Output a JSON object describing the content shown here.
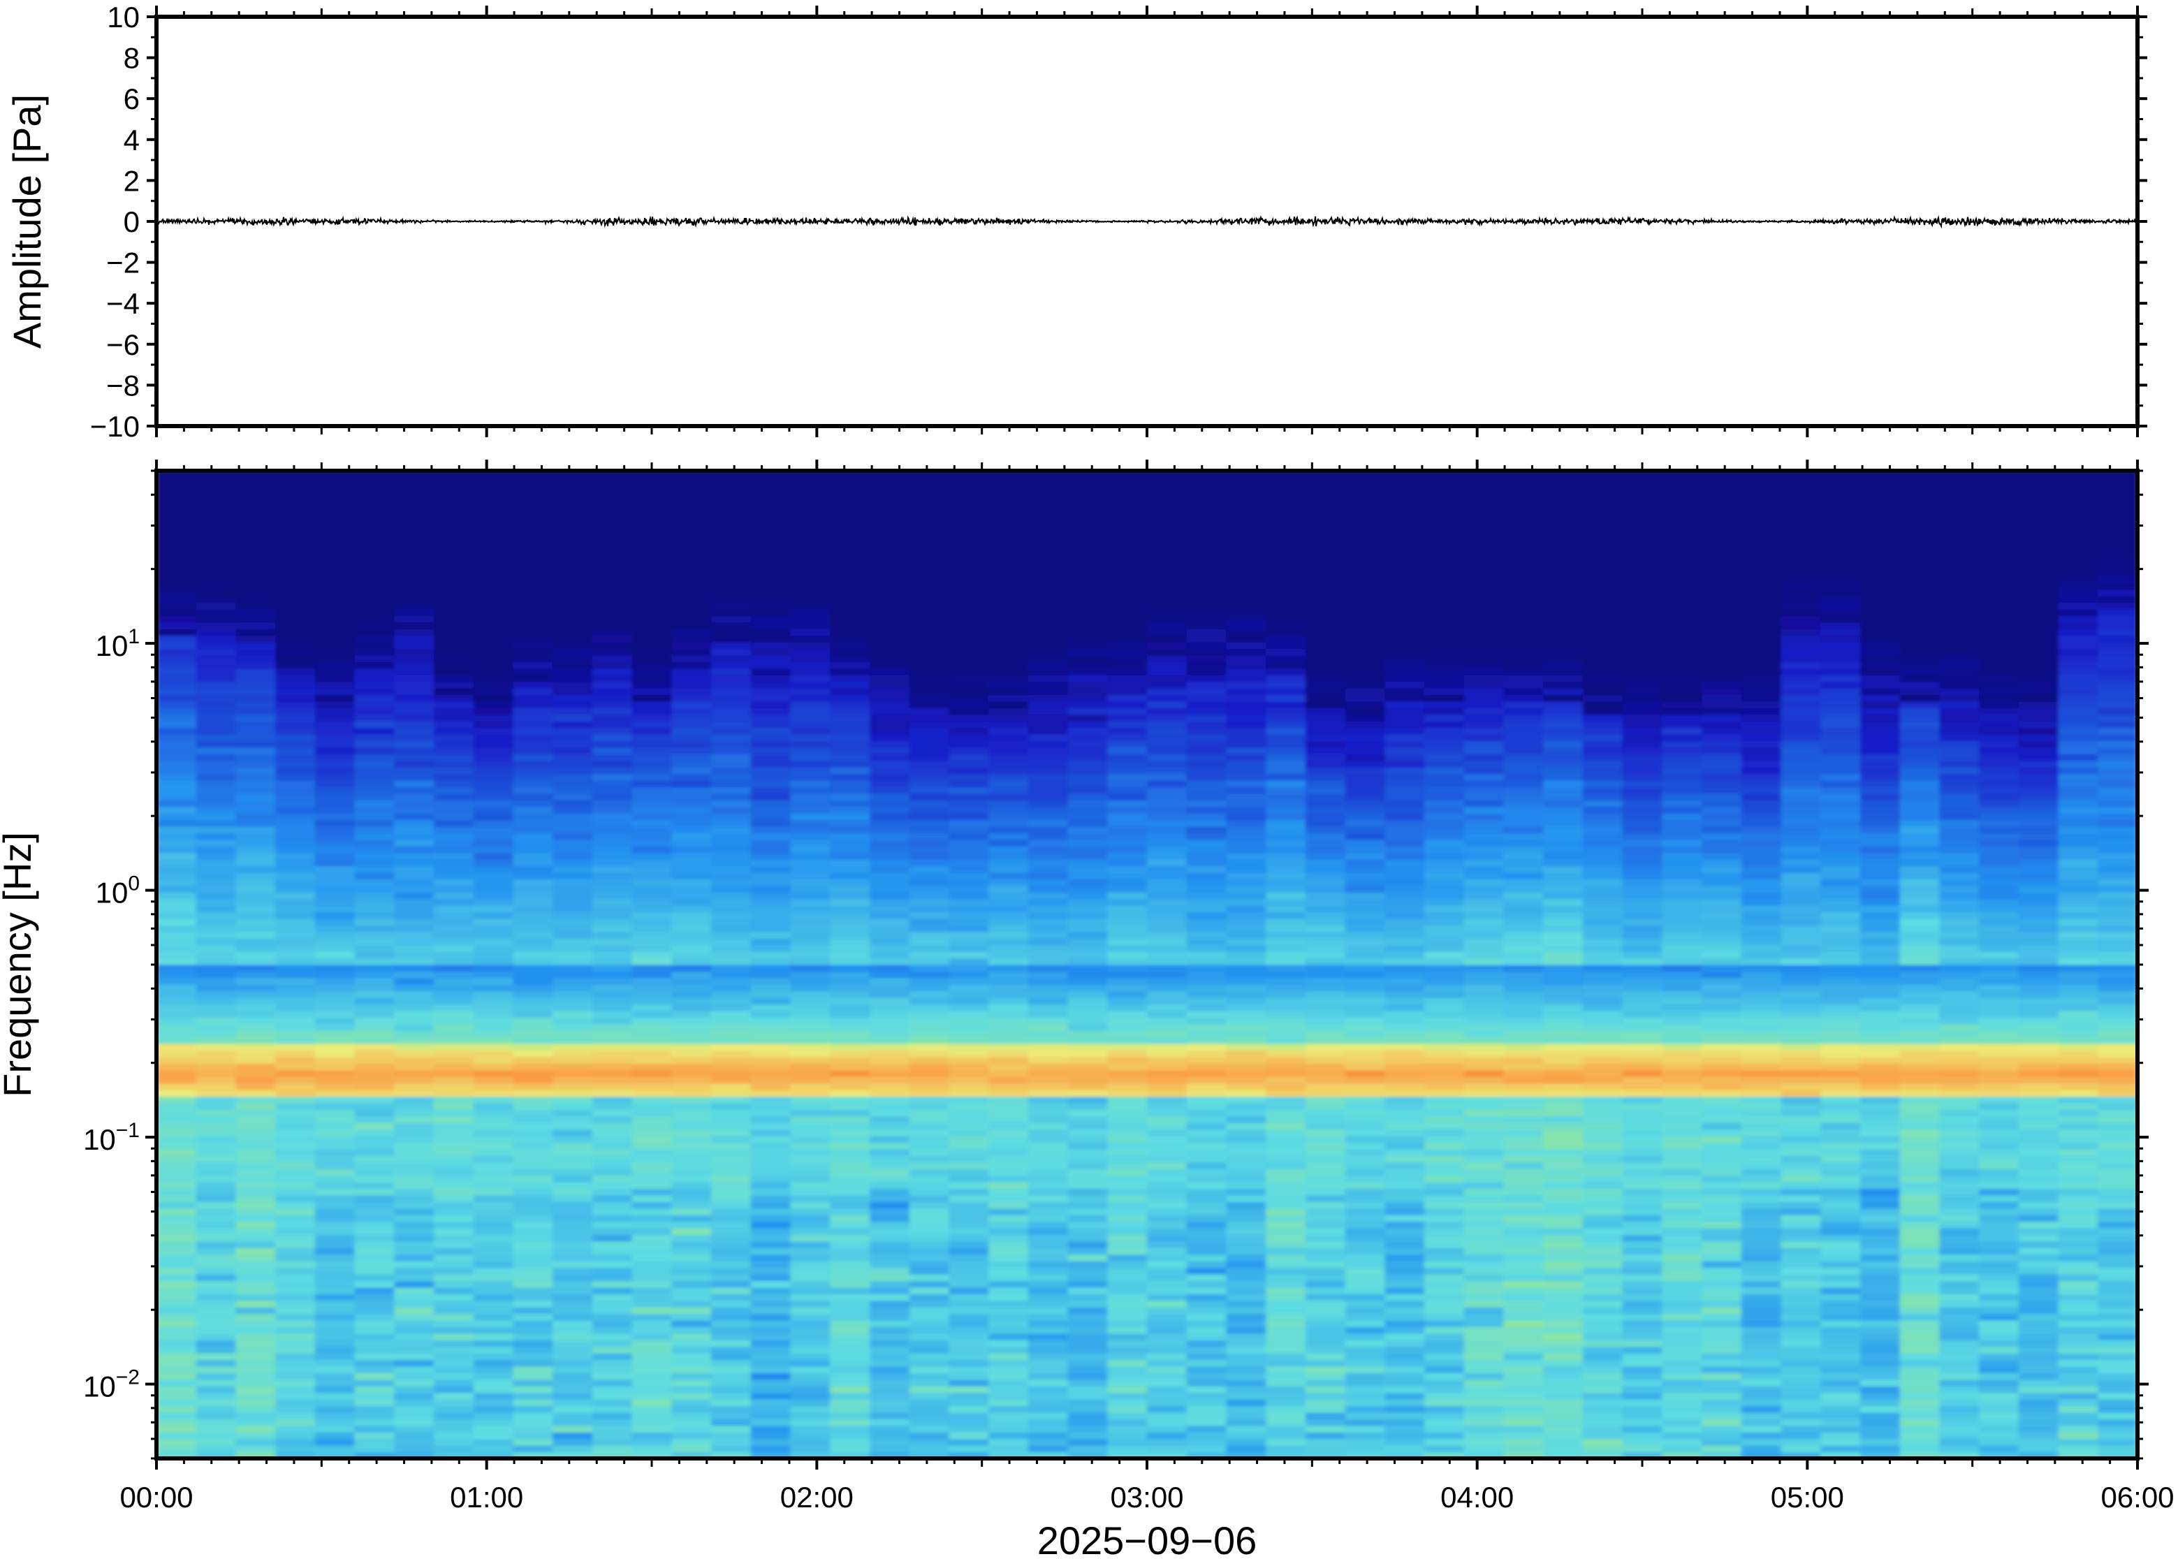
{
  "chart_data": [
    {
      "type": "line",
      "ylabel": "Amplitude [Pa]",
      "ylim": [
        -10,
        10
      ],
      "yticks": [
        10,
        8,
        6,
        4,
        2,
        0,
        -2,
        -4,
        -6,
        -8,
        -10
      ],
      "ytick_labels": [
        "10",
        "8",
        "6",
        "4",
        "2",
        "0",
        "−2",
        "−4",
        "−6",
        "−8",
        "−10"
      ],
      "xlim": [
        "00:00",
        "06:00"
      ],
      "series": [
        {
          "color": "#000000",
          "description_values_note": "",
          "x": [
            "00:00",
            "00:30",
            "01:00",
            "01:30",
            "02:00",
            "02:30",
            "03:00",
            "03:30",
            "04:00",
            "04:30",
            "05:00",
            "05:30",
            "06:00"
          ],
          "values": [
            0,
            0,
            0,
            0,
            0,
            0,
            0,
            0,
            0,
            0,
            0,
            0,
            0
          ],
          "noise_amplitude": 0.3
        }
      ],
      "grid": false
    },
    {
      "type": "heatmap",
      "ylabel": "Frequency [Hz]",
      "yscale": "log",
      "ylim": [
        0.005,
        50
      ],
      "yticks": [
        {
          "value": 10,
          "base": "10",
          "exp": "1"
        },
        {
          "value": 1,
          "base": "10",
          "exp": "0"
        },
        {
          "value": 0.1,
          "base": "10",
          "exp": "−1"
        },
        {
          "value": 0.01,
          "base": "10",
          "exp": "−2"
        }
      ],
      "xlabel": "2025−09−06",
      "xticks": [
        "00:00",
        "01:00",
        "02:00",
        "03:00",
        "04:00",
        "05:00",
        "06:00"
      ],
      "xlim": [
        "00:00",
        "06:00"
      ],
      "colormap": "jet",
      "colors": {
        "low": "#0b0473",
        "mid": "#5fe0e0",
        "high": "#e2231c"
      },
      "upper_cutoff_hz_per_column": [
        11,
        11,
        10,
        7,
        6,
        8,
        10,
        6,
        5,
        7,
        7,
        8,
        6,
        8,
        10,
        10,
        10,
        7,
        6,
        5,
        5,
        5,
        6,
        7,
        7,
        9,
        9,
        9,
        8,
        5,
        5,
        6,
        6,
        6,
        6,
        6,
        5,
        5,
        5,
        5,
        5,
        12,
        12,
        7,
        6,
        6,
        5,
        5,
        13,
        15
      ],
      "band_center_hz": 0.18,
      "grid": false
    }
  ]
}
